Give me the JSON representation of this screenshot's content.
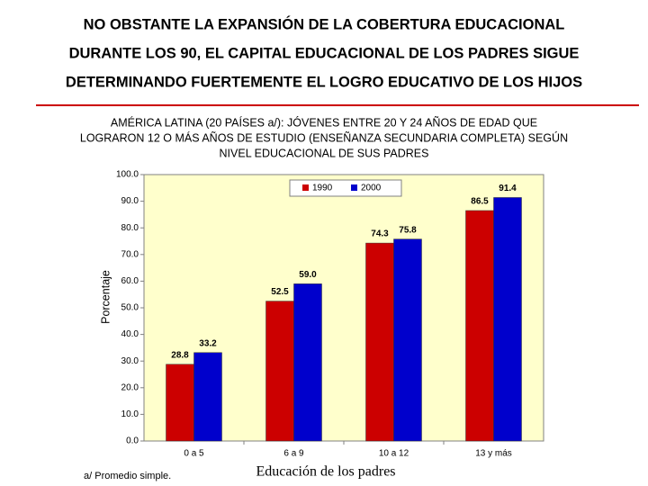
{
  "chart_data": {
    "type": "bar",
    "title": [
      "NO OBSTANTE LA EXPANSIÓN DE LA COBERTURA EDUCACIONAL",
      "DURANTE LOS 90, EL CAPITAL EDUCACIONAL DE LOS PADRES SIGUE",
      "DETERMINANDO FUERTEMENTE EL LOGRO EDUCATIVO DE LOS HIJOS"
    ],
    "subtitle": [
      "AMÉRICA LATINA (20 PAÍSES a/): JÓVENES ENTRE 20 Y 24 AÑOS DE EDAD QUE",
      "LOGRARON 12 O MÁS AÑOS DE ESTUDIO (ENSEÑANZA SECUNDARIA COMPLETA) SEGÚN",
      "NIVEL EDUCACIONAL DE SUS PADRES"
    ],
    "y_label": "Porcentaje",
    "x_label": "Educación de los padres",
    "footnote": "a/ Promedio simple.",
    "categories": [
      "0 a 5",
      "6 a 9",
      "10 a 12",
      "13 y más"
    ],
    "series": [
      {
        "name": "1990",
        "color": "#cc0000",
        "values": [
          28.8,
          52.5,
          74.3,
          86.5
        ],
        "value_labels": [
          "28.8",
          "52.5",
          "74.3",
          "86.5"
        ]
      },
      {
        "name": "2000",
        "color": "#0000cc",
        "values": [
          33.2,
          59.0,
          75.8,
          91.4
        ],
        "value_labels": [
          "33.2",
          "59.0",
          "75.8",
          "91.4"
        ]
      }
    ],
    "ylim": [
      0,
      100
    ],
    "yticks": [
      {
        "value": 0,
        "label": "0.0"
      },
      {
        "value": 10,
        "label": "10.0"
      },
      {
        "value": 20,
        "label": "20.0"
      },
      {
        "value": 30,
        "label": "30.0"
      },
      {
        "value": 40,
        "label": "40.0"
      },
      {
        "value": 50,
        "label": "50.0"
      },
      {
        "value": 60,
        "label": "60.0"
      },
      {
        "value": 70,
        "label": "70.0"
      },
      {
        "value": 80,
        "label": "80.0"
      },
      {
        "value": 90,
        "label": "90.0"
      },
      {
        "value": 100,
        "label": "100.0"
      }
    ],
    "grid": false,
    "legend": "top"
  }
}
